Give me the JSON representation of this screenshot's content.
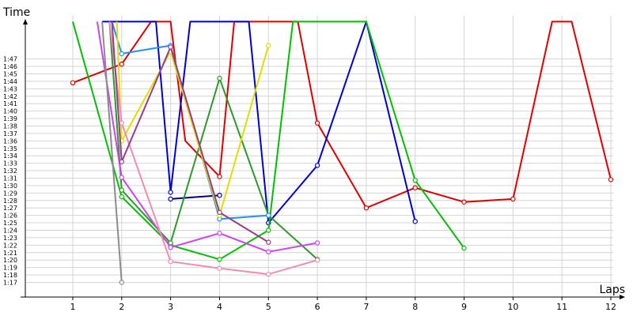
{
  "chart_data": {
    "type": "line",
    "title": "",
    "ylabel": "Time",
    "xlabel": "Laps",
    "x_ticks": [
      "1",
      "2",
      "3",
      "4",
      "5",
      "6",
      "7",
      "8",
      "9",
      "10",
      "11",
      "12"
    ],
    "y_ticks": [
      "1:17",
      "1:18",
      "1:19",
      "1:20",
      "1:21",
      "1:22",
      "1:23",
      "1:24",
      "1:25",
      "1:26",
      "1:27",
      "1:28",
      "1:29",
      "1:30",
      "1:31",
      "1:32",
      "1:33",
      "1:34",
      "1:35",
      "1:36",
      "1:37",
      "1:38",
      "1:39",
      "1:40",
      "1:41",
      "1:42",
      "1:43",
      "1:44",
      "1:45",
      "1:46",
      "1:47"
    ],
    "xlim": [
      0,
      12.2
    ],
    "ylim_seconds": [
      77,
      108.5
    ],
    "grid": {
      "horizontal": true,
      "vertical": true
    },
    "y_unit": "m:ss",
    "series": [
      {
        "color": "#e00000",
        "points": [
          [
            1,
            103.8
          ],
          [
            2,
            106.3
          ],
          [
            2.6,
            112
          ],
          [
            3,
            112
          ],
          [
            3.3,
            96
          ],
          [
            4,
            91.2
          ],
          [
            4.3,
            112
          ],
          [
            5,
            112
          ],
          [
            5.6,
            112
          ],
          [
            6,
            98.4
          ],
          [
            7,
            87
          ],
          [
            8,
            89.7
          ],
          [
            9,
            87.8
          ],
          [
            10,
            88.2
          ],
          [
            10.8,
            112
          ],
          [
            11.2,
            112
          ],
          [
            12,
            90.8
          ]
        ]
      },
      {
        "color": "#0000d0",
        "points": [
          [
            1.6,
            112
          ],
          [
            2.7,
            112
          ],
          [
            3,
            89.1
          ],
          [
            3.4,
            112
          ],
          [
            4.3,
            112
          ],
          [
            4.6,
            112
          ],
          [
            5,
            85
          ],
          [
            6,
            92.7
          ],
          [
            7,
            112
          ],
          [
            8,
            85.2
          ]
        ]
      },
      {
        "color": "#000080",
        "points": [
          [
            3,
            88.2
          ],
          [
            4,
            88.7
          ]
        ]
      },
      {
        "color": "#00c000",
        "points": [
          [
            1,
            112
          ],
          [
            2,
            88.5
          ],
          [
            3,
            82
          ],
          [
            4,
            80.1
          ],
          [
            5,
            84
          ],
          [
            5.5,
            112
          ],
          [
            6,
            112
          ],
          [
            6.5,
            112
          ],
          [
            7,
            112
          ],
          [
            8,
            90.7
          ],
          [
            9,
            81.6
          ]
        ]
      },
      {
        "color": "#2a9a2a",
        "points": [
          [
            1.75,
            112
          ],
          [
            2,
            89.4
          ],
          [
            3,
            82.3
          ],
          [
            4,
            104.4
          ],
          [
            5,
            86
          ],
          [
            6,
            80.1
          ]
        ]
      },
      {
        "color": "#1e90ff",
        "points": [
          [
            1.8,
            112
          ],
          [
            2,
            107.7
          ],
          [
            3,
            108.8
          ],
          [
            4,
            85.5
          ],
          [
            5,
            86
          ]
        ]
      },
      {
        "color": "#dede00",
        "points": [
          [
            1.9,
            112
          ],
          [
            2,
            96
          ],
          [
            3,
            108
          ],
          [
            4,
            86
          ],
          [
            5,
            108.8
          ]
        ]
      },
      {
        "color": "#cc44ee",
        "points": [
          [
            1.5,
            112
          ],
          [
            2,
            91.1
          ],
          [
            3,
            81.7
          ],
          [
            4,
            83.6
          ],
          [
            5,
            81.1
          ],
          [
            6,
            82.3
          ]
        ]
      },
      {
        "color": "#f08cb0",
        "points": [
          [
            1.75,
            112
          ],
          [
            2,
            98.4
          ],
          [
            3,
            79.8
          ],
          [
            4,
            78.9
          ],
          [
            5,
            78.1
          ],
          [
            6,
            80
          ]
        ]
      },
      {
        "color": "#9a3c8c",
        "points": [
          [
            1.8,
            112
          ],
          [
            2,
            93.2
          ],
          [
            3,
            108.6
          ],
          [
            4,
            86.4
          ],
          [
            5,
            82.4
          ]
        ]
      },
      {
        "color": "#8c8c8c",
        "points": [
          [
            1.6,
            112
          ],
          [
            2,
            77
          ]
        ]
      }
    ]
  }
}
